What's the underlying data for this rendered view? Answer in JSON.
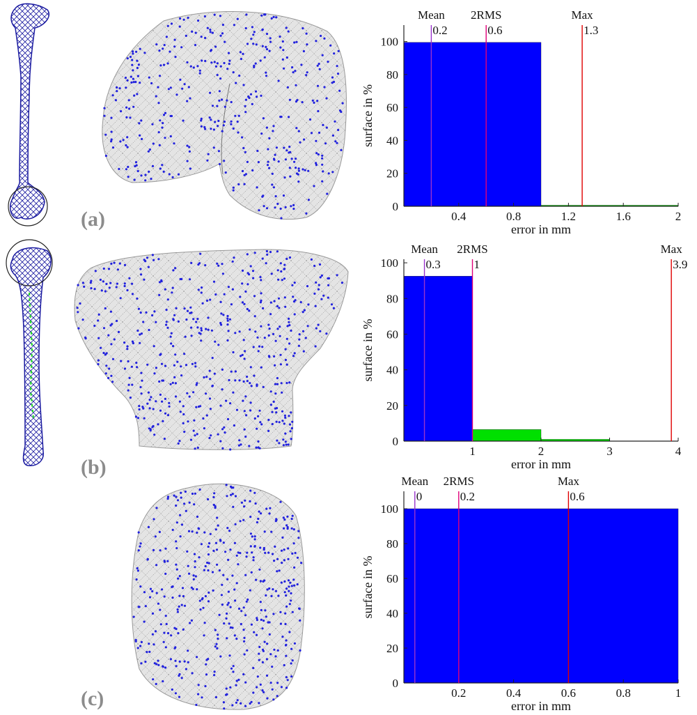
{
  "panels": [
    {
      "label": "(a)"
    },
    {
      "label": "(b)"
    },
    {
      "label": "(c)"
    }
  ],
  "colors": {
    "bar_main": "#0000ff",
    "bar_secondary": "#00e000",
    "mean_line": "#9933cc",
    "rms_line": "#e0007a",
    "max_line": "#e00000",
    "mesh_fill": "#e4e4e4",
    "mesh_line": "#333333",
    "mesh_point": "#2222dd"
  },
  "chart_data": [
    {
      "type": "bar",
      "panel": "(a)",
      "xlabel": "error in mm",
      "ylabel": "surface in %",
      "xlim": [
        0,
        2
      ],
      "ylim": [
        0,
        110
      ],
      "xticks": [
        0.4,
        0.8,
        1.2,
        1.6,
        2
      ],
      "xtick_labels": [
        "0.4",
        "0.8",
        "1.2",
        "1.6",
        "2"
      ],
      "yticks": [
        0,
        20,
        40,
        60,
        80,
        100
      ],
      "bins": [
        {
          "start": 0,
          "end": 1,
          "value": 99.5,
          "color": "main"
        },
        {
          "start": 1,
          "end": 2,
          "value": 0.5,
          "color": "secondary"
        }
      ],
      "markers": [
        {
          "name": "Mean",
          "value": 0.2,
          "label": "0.2",
          "color": "mean"
        },
        {
          "name": "2RMS",
          "value": 0.6,
          "label": "0.6",
          "color": "rms"
        },
        {
          "name": "Max",
          "value": 1.3,
          "label": "1.3",
          "color": "max"
        }
      ]
    },
    {
      "type": "bar",
      "panel": "(b)",
      "xlabel": "error in mm",
      "ylabel": "surface in %",
      "xlim": [
        0,
        4
      ],
      "ylim": [
        0,
        102
      ],
      "xticks": [
        1,
        2,
        3,
        4
      ],
      "xtick_labels": [
        "1",
        "2",
        "3",
        "4"
      ],
      "yticks": [
        0,
        20,
        40,
        60,
        80,
        100
      ],
      "bins": [
        {
          "start": 0,
          "end": 1,
          "value": 92.5,
          "color": "main"
        },
        {
          "start": 1,
          "end": 2,
          "value": 6.5,
          "color": "secondary"
        },
        {
          "start": 2,
          "end": 3,
          "value": 1,
          "color": "secondary"
        }
      ],
      "markers": [
        {
          "name": "Mean",
          "value": 0.3,
          "label": "0.3",
          "color": "mean"
        },
        {
          "name": "2RMS",
          "value": 1,
          "label": "1",
          "color": "rms"
        },
        {
          "name": "Max",
          "value": 3.9,
          "label": "3.9",
          "color": "max"
        }
      ]
    },
    {
      "type": "bar",
      "panel": "(c)",
      "xlabel": "error in mm",
      "ylabel": "surface in %",
      "xlim": [
        0,
        1
      ],
      "ylim": [
        0,
        110
      ],
      "xticks": [
        0.2,
        0.4,
        0.6,
        0.8,
        1
      ],
      "xtick_labels": [
        "0.2",
        "0.4",
        "0.6",
        "0.8",
        "1"
      ],
      "yticks": [
        0,
        20,
        40,
        60,
        80,
        100
      ],
      "bins": [
        {
          "start": 0,
          "end": 1,
          "value": 100,
          "color": "main"
        }
      ],
      "markers": [
        {
          "name": "Mean",
          "value": 0.04,
          "label": "0",
          "color": "mean"
        },
        {
          "name": "2RMS",
          "value": 0.2,
          "label": "0.2",
          "color": "rms"
        },
        {
          "name": "Max",
          "value": 0.6,
          "label": "0.6",
          "color": "max"
        }
      ]
    }
  ]
}
